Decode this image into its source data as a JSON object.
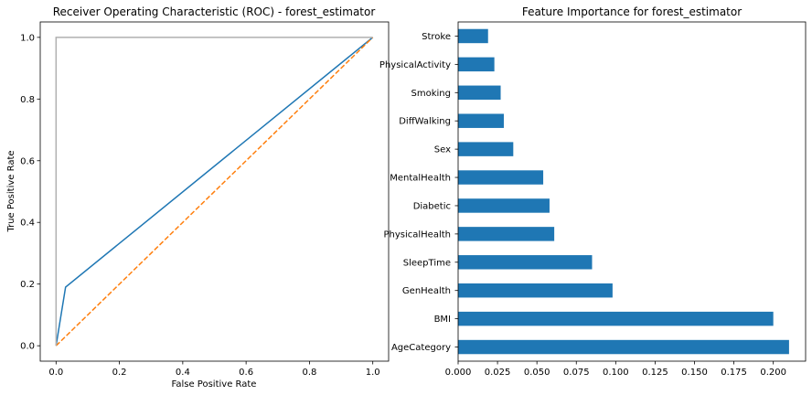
{
  "chart_data": [
    {
      "type": "line",
      "title": "Receiver Operating Characteristic (ROC) - forest_estimator",
      "xlabel": "False Positive Rate",
      "ylabel": "True Positive Rate",
      "xlim": [
        -0.05,
        1.05
      ],
      "ylim": [
        -0.05,
        1.05
      ],
      "x_ticks": [
        0.0,
        0.2,
        0.4,
        0.6,
        0.8,
        1.0
      ],
      "x_tick_labels": [
        "0.0",
        "0.2",
        "0.4",
        "0.6",
        "0.8",
        "1.0"
      ],
      "y_ticks": [
        0.0,
        0.2,
        0.4,
        0.6,
        0.8,
        1.0
      ],
      "y_tick_labels": [
        "0.0",
        "0.2",
        "0.4",
        "0.6",
        "0.8",
        "1.0"
      ],
      "grid": false,
      "series": [
        {
          "color": "#1f77b4",
          "style": "solid",
          "x": [
            0.0,
            0.03,
            1.0
          ],
          "y": [
            0.0,
            0.19,
            1.0
          ]
        },
        {
          "color": "#ff7f0e",
          "style": "dashed",
          "x": [
            0.0,
            1.0
          ],
          "y": [
            0.0,
            1.0
          ]
        },
        {
          "color": "#b0b0b0",
          "style": "solid",
          "x": [
            0.0,
            0.0,
            1.0
          ],
          "y": [
            0.0,
            1.0,
            1.0
          ]
        }
      ]
    },
    {
      "type": "bar",
      "orientation": "horizontal",
      "title": "Feature Importance for forest_estimator",
      "categories": [
        "AgeCategory",
        "BMI",
        "GenHealth",
        "SleepTime",
        "PhysicalHealth",
        "Diabetic",
        "MentalHealth",
        "Sex",
        "DiffWalking",
        "Smoking",
        "PhysicalActivity",
        "Stroke"
      ],
      "values": [
        0.21,
        0.2,
        0.098,
        0.085,
        0.061,
        0.058,
        0.054,
        0.035,
        0.029,
        0.027,
        0.023,
        0.019
      ],
      "color": "#1f77b4",
      "xlim": [
        0.0,
        0.2205
      ],
      "x_ticks": [
        0.0,
        0.025,
        0.05,
        0.075,
        0.1,
        0.125,
        0.15,
        0.175,
        0.2
      ],
      "x_tick_labels": [
        "0.000",
        "0.025",
        "0.050",
        "0.075",
        "0.100",
        "0.125",
        "0.150",
        "0.175",
        "0.200"
      ],
      "grid": false
    }
  ]
}
